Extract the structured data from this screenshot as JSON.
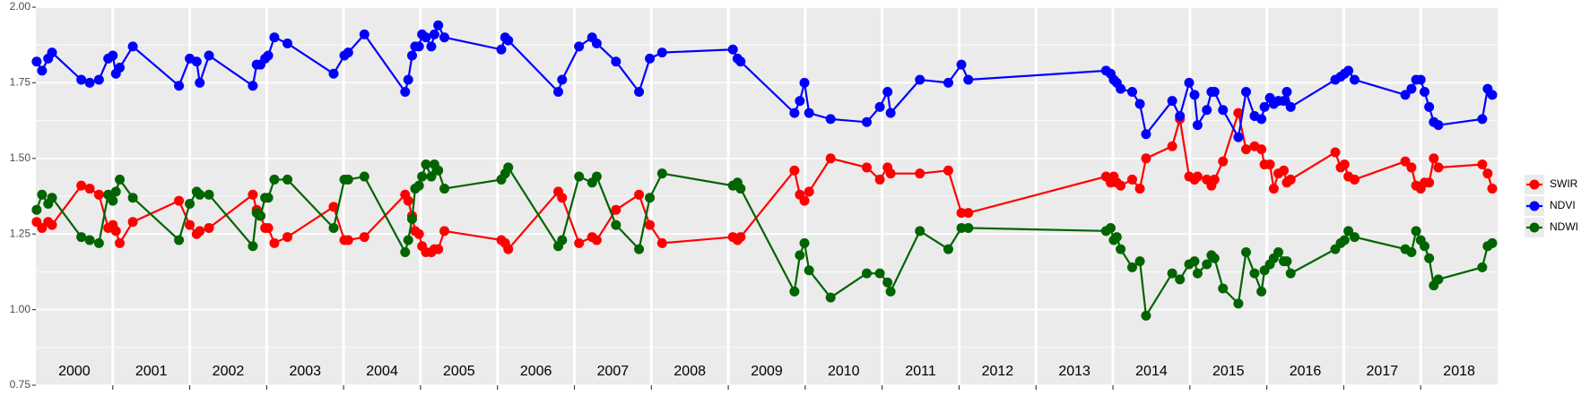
{
  "chart_data": {
    "type": "line",
    "x": [
      2000.01,
      2000.08,
      2000.16,
      2000.21,
      2000.59,
      2000.7,
      2000.82,
      2000.94,
      2001.0,
      2001.04,
      2001.09,
      2001.26,
      2001.86,
      2002.0,
      2002.09,
      2002.13,
      2002.25,
      2002.82,
      2002.87,
      2002.92,
      2002.98,
      2003.02,
      2003.1,
      2003.27,
      2003.87,
      2004.01,
      2004.06,
      2004.27,
      2004.8,
      2004.84,
      2004.89,
      2004.93,
      2004.98,
      2005.02,
      2005.07,
      2005.14,
      2005.18,
      2005.23,
      2005.31,
      2006.05,
      2006.1,
      2006.14,
      2006.79,
      2006.84,
      2007.06,
      2007.23,
      2007.29,
      2007.54,
      2007.84,
      2007.98,
      2008.14,
      2009.06,
      2009.12,
      2009.16,
      2009.86,
      2009.93,
      2009.99,
      2010.05,
      2010.33,
      2010.8,
      2010.97,
      2011.07,
      2011.11,
      2011.49,
      2011.86,
      2012.03,
      2012.12,
      2013.91,
      2013.97,
      2014.01,
      2014.05,
      2014.1,
      2014.25,
      2014.35,
      2014.43,
      2014.77,
      2014.87,
      2014.99,
      2015.06,
      2015.1,
      2015.22,
      2015.28,
      2015.32,
      2015.43,
      2015.63,
      2015.73,
      2015.84,
      2015.93,
      2015.97,
      2016.04,
      2016.09,
      2016.15,
      2016.22,
      2016.26,
      2016.31,
      2016.89,
      2016.96,
      2017.01,
      2017.06,
      2017.14,
      2017.8,
      2017.88,
      2017.94,
      2018.0,
      2018.05,
      2018.11,
      2018.17,
      2018.23,
      2018.8,
      2018.87,
      2018.93
    ],
    "series": [
      {
        "name": "SWIR",
        "color": "#ff0000",
        "values": [
          1.29,
          1.27,
          1.29,
          1.28,
          1.41,
          1.4,
          1.38,
          1.27,
          1.28,
          1.26,
          1.22,
          1.29,
          1.36,
          1.28,
          1.25,
          1.26,
          1.27,
          1.38,
          1.33,
          1.31,
          1.27,
          1.27,
          1.22,
          1.24,
          1.34,
          1.23,
          1.23,
          1.24,
          1.38,
          1.36,
          1.31,
          1.26,
          1.25,
          1.21,
          1.19,
          1.19,
          1.2,
          1.2,
          1.26,
          1.23,
          1.22,
          1.2,
          1.39,
          1.37,
          1.22,
          1.24,
          1.23,
          1.33,
          1.38,
          1.28,
          1.22,
          1.24,
          1.23,
          1.24,
          1.46,
          1.38,
          1.36,
          1.39,
          1.5,
          1.47,
          1.43,
          1.47,
          1.45,
          1.45,
          1.46,
          1.32,
          1.32,
          1.44,
          1.42,
          1.44,
          1.42,
          1.41,
          1.43,
          1.4,
          1.5,
          1.54,
          1.63,
          1.44,
          1.43,
          1.44,
          1.43,
          1.41,
          1.43,
          1.49,
          1.65,
          1.53,
          1.54,
          1.53,
          1.48,
          1.48,
          1.4,
          1.45,
          1.46,
          1.42,
          1.43,
          1.52,
          1.47,
          1.48,
          1.44,
          1.43,
          1.49,
          1.47,
          1.41,
          1.4,
          1.42,
          1.42,
          1.5,
          1.47,
          1.48,
          1.45,
          1.4
        ]
      },
      {
        "name": "NDVI",
        "color": "#0000ff",
        "values": [
          1.82,
          1.79,
          1.83,
          1.85,
          1.76,
          1.75,
          1.76,
          1.83,
          1.84,
          1.78,
          1.8,
          1.87,
          1.74,
          1.83,
          1.82,
          1.75,
          1.84,
          1.74,
          1.81,
          1.81,
          1.83,
          1.84,
          1.9,
          1.88,
          1.78,
          1.84,
          1.85,
          1.91,
          1.72,
          1.76,
          1.84,
          1.87,
          1.87,
          1.91,
          1.9,
          1.87,
          1.91,
          1.94,
          1.9,
          1.86,
          1.9,
          1.89,
          1.72,
          1.76,
          1.87,
          1.9,
          1.88,
          1.82,
          1.72,
          1.83,
          1.85,
          1.86,
          1.83,
          1.82,
          1.65,
          1.69,
          1.75,
          1.65,
          1.63,
          1.62,
          1.67,
          1.72,
          1.65,
          1.76,
          1.75,
          1.81,
          1.76,
          1.79,
          1.78,
          1.76,
          1.75,
          1.73,
          1.72,
          1.68,
          1.58,
          1.69,
          1.64,
          1.75,
          1.71,
          1.61,
          1.66,
          1.72,
          1.72,
          1.66,
          1.57,
          1.72,
          1.64,
          1.63,
          1.67,
          1.7,
          1.68,
          1.69,
          1.69,
          1.72,
          1.67,
          1.76,
          1.77,
          1.78,
          1.79,
          1.76,
          1.71,
          1.73,
          1.76,
          1.76,
          1.72,
          1.67,
          1.62,
          1.61,
          1.63,
          1.73,
          1.71
        ]
      },
      {
        "name": "NDWI",
        "color": "#006400",
        "values": [
          1.33,
          1.38,
          1.35,
          1.37,
          1.24,
          1.23,
          1.22,
          1.38,
          1.36,
          1.39,
          1.43,
          1.37,
          1.23,
          1.35,
          1.39,
          1.38,
          1.38,
          1.21,
          1.32,
          1.31,
          1.37,
          1.37,
          1.43,
          1.43,
          1.27,
          1.43,
          1.43,
          1.44,
          1.19,
          1.23,
          1.3,
          1.4,
          1.41,
          1.44,
          1.48,
          1.44,
          1.48,
          1.46,
          1.4,
          1.43,
          1.45,
          1.47,
          1.21,
          1.23,
          1.44,
          1.42,
          1.44,
          1.28,
          1.2,
          1.37,
          1.45,
          1.41,
          1.42,
          1.4,
          1.06,
          1.18,
          1.22,
          1.13,
          1.04,
          1.12,
          1.12,
          1.09,
          1.06,
          1.26,
          1.2,
          1.27,
          1.27,
          1.26,
          1.27,
          1.23,
          1.24,
          1.2,
          1.14,
          1.16,
          0.98,
          1.12,
          1.1,
          1.15,
          1.16,
          1.12,
          1.15,
          1.18,
          1.17,
          1.07,
          1.02,
          1.19,
          1.12,
          1.06,
          1.13,
          1.15,
          1.17,
          1.19,
          1.16,
          1.16,
          1.12,
          1.2,
          1.22,
          1.23,
          1.26,
          1.24,
          1.2,
          1.19,
          1.26,
          1.23,
          1.21,
          1.17,
          1.08,
          1.1,
          1.14,
          1.21,
          1.22
        ]
      }
    ],
    "xlim": [
      2000,
      2019
    ],
    "xticks": [
      2001,
      2002,
      2003,
      2004,
      2005,
      2006,
      2007,
      2008,
      2009,
      2010,
      2011,
      2012,
      2013,
      2014,
      2015,
      2016,
      2017,
      2018
    ],
    "year_labels": [
      {
        "value": 2000.5,
        "label": "2000"
      },
      {
        "value": 2001.5,
        "label": "2001"
      },
      {
        "value": 2002.5,
        "label": "2002"
      },
      {
        "value": 2003.5,
        "label": "2003"
      },
      {
        "value": 2004.5,
        "label": "2004"
      },
      {
        "value": 2005.5,
        "label": "2005"
      },
      {
        "value": 2006.5,
        "label": "2006"
      },
      {
        "value": 2007.5,
        "label": "2007"
      },
      {
        "value": 2008.5,
        "label": "2008"
      },
      {
        "value": 2009.5,
        "label": "2009"
      },
      {
        "value": 2010.5,
        "label": "2010"
      },
      {
        "value": 2011.5,
        "label": "2011"
      },
      {
        "value": 2012.5,
        "label": "2012"
      },
      {
        "value": 2013.5,
        "label": "2013"
      },
      {
        "value": 2014.5,
        "label": "2014"
      },
      {
        "value": 2015.5,
        "label": "2015"
      },
      {
        "value": 2016.5,
        "label": "2016"
      },
      {
        "value": 2017.5,
        "label": "2017"
      },
      {
        "value": 2018.5,
        "label": "2018"
      }
    ],
    "ylim": [
      0.75,
      2
    ],
    "yticks": [
      {
        "value": 0.75,
        "label": "0.75"
      },
      {
        "value": 1,
        "label": "1.00"
      },
      {
        "value": 1.25,
        "label": "1.25"
      },
      {
        "value": 1.5,
        "label": "1.50"
      },
      {
        "value": 1.75,
        "label": "1.75"
      },
      {
        "value": 2,
        "label": "2.00"
      }
    ],
    "grid": true,
    "legend": "right"
  }
}
